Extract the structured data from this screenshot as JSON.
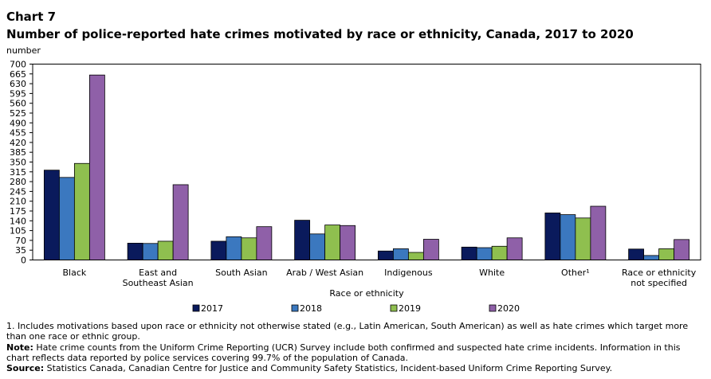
{
  "header": {
    "chart_label": "Chart 7",
    "title": "Number of police-reported hate crimes motivated by race or ethnicity, Canada, 2017 to 2020",
    "unit_label": "number"
  },
  "chart_data": {
    "type": "bar",
    "xlabel": "Race or ethnicity",
    "ylabel": "number",
    "ylim": [
      0,
      700
    ],
    "yticks": [
      "700",
      "665",
      "630",
      "595",
      "560",
      "525",
      "490",
      "455",
      "420",
      "385",
      "350",
      "315",
      "280",
      "245",
      "210",
      "175",
      "140",
      "105",
      "70",
      "35",
      "0"
    ],
    "grid": false,
    "legend_position": "bottom",
    "categories": [
      [
        "Black"
      ],
      [
        "East and",
        "Southeast Asian"
      ],
      [
        "South Asian"
      ],
      [
        "Arab / West Asian"
      ],
      [
        "Indigenous"
      ],
      [
        "White"
      ],
      [
        "Other¹"
      ],
      [
        "Race or ethnicity",
        "not specified"
      ]
    ],
    "series": [
      {
        "name": "2017",
        "color": "#0a1a5c",
        "values": [
          321,
          60,
          67,
          142,
          32,
          46,
          168,
          39
        ]
      },
      {
        "name": "2018",
        "color": "#3b78bf",
        "values": [
          295,
          59,
          83,
          93,
          40,
          44,
          162,
          16
        ]
      },
      {
        "name": "2019",
        "color": "#8fbf4f",
        "values": [
          345,
          67,
          79,
          125,
          27,
          49,
          150,
          40
        ]
      },
      {
        "name": "2020",
        "color": "#8f60a8",
        "values": [
          661,
          269,
          119,
          123,
          74,
          79,
          192,
          73
        ]
      }
    ]
  },
  "footnotes": {
    "note1": "1. Includes motivations based upon race or ethnicity not otherwise stated (e.g., Latin American, South American) as well as hate crimes which target more than one race or ethnic group.",
    "note_label": "Note:",
    "note_text": " Hate crime counts from the Uniform Crime Reporting (UCR) Survey include both confirmed and suspected hate crime incidents. Information in this chart reflects data reported by police services covering 99.7% of the population of Canada.",
    "source_label": "Source:",
    "source_text": " Statistics Canada, Canadian Centre for Justice and Community Safety Statistics, Incident-based Uniform Crime Reporting Survey."
  }
}
